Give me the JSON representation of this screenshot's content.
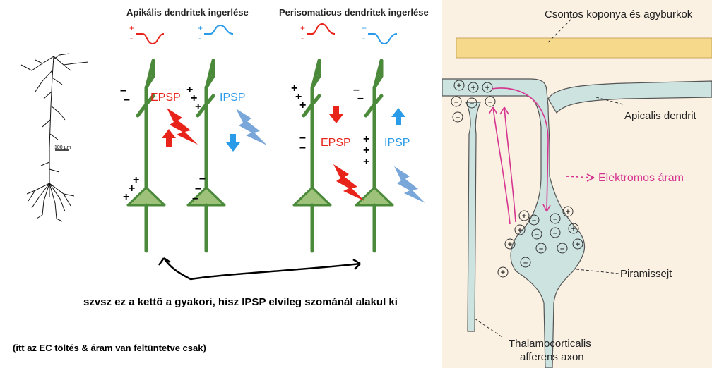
{
  "left": {
    "scale_bar": "100 µm",
    "headers": {
      "apical": "Apikális dendritek ingerlése",
      "perisomatic": "Perisomaticus dendritek ingerlése"
    },
    "labels": {
      "epsp": "EPSP",
      "ipsp": "IPSP"
    },
    "colors": {
      "excitatory": "#e8231a",
      "inhibitory": "#2a9be8",
      "neuron": "#4b8a3a"
    },
    "notes": {
      "main": "szvsz ez a kettő a gyakori, hisz IPSP elvileg szománál alakul ki",
      "sub": "(itt az EC töltés & áram van feltüntetve csak)"
    }
  },
  "right": {
    "labels": {
      "skull": "Csontos koponya és agyburkok",
      "apical": "Apicalis dendrit",
      "current": "Elektromos áram",
      "pyramid": "Piramissejt",
      "thalamic_line1": "Thalamocorticalis",
      "thalamic_line2": "afferens axon"
    },
    "colors": {
      "background": "#faf1e3",
      "bone": "#f6d98a",
      "cell": "#cde3e0",
      "current": "#d6358f"
    }
  }
}
